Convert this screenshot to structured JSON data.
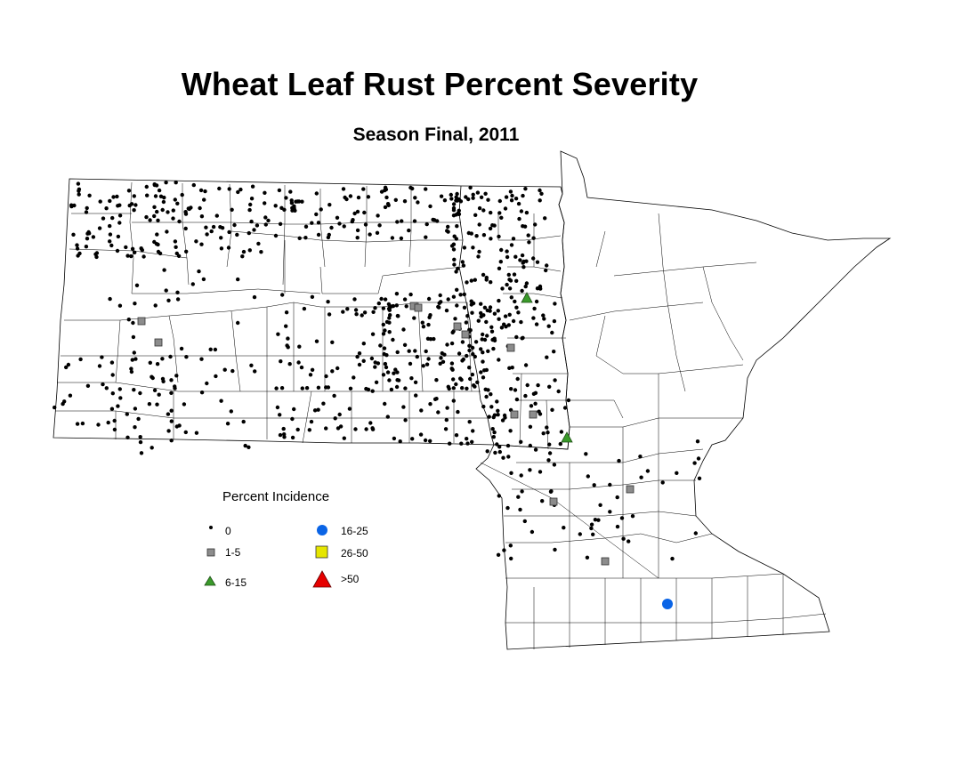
{
  "title": "Wheat Leaf Rust Percent Severity",
  "subtitle": "Season Final, 2011",
  "legend": {
    "title": "Percent Incidence",
    "items": [
      {
        "label": "0",
        "symbol": "dot",
        "color": "#000000"
      },
      {
        "label": "1-5",
        "symbol": "square",
        "color": "#8c8c8c"
      },
      {
        "label": "6-15",
        "symbol": "triangle",
        "color": "#3a9a2a"
      },
      {
        "label": "16-25",
        "symbol": "circle",
        "color": "#0a64e6"
      },
      {
        "label": "26-50",
        "symbol": "square",
        "color": "#e6e600"
      },
      {
        "label": ">50",
        "symbol": "triangle",
        "color": "#e60000"
      }
    ]
  },
  "colors": {
    "outline": "#000000",
    "background": "#ffffff"
  }
}
